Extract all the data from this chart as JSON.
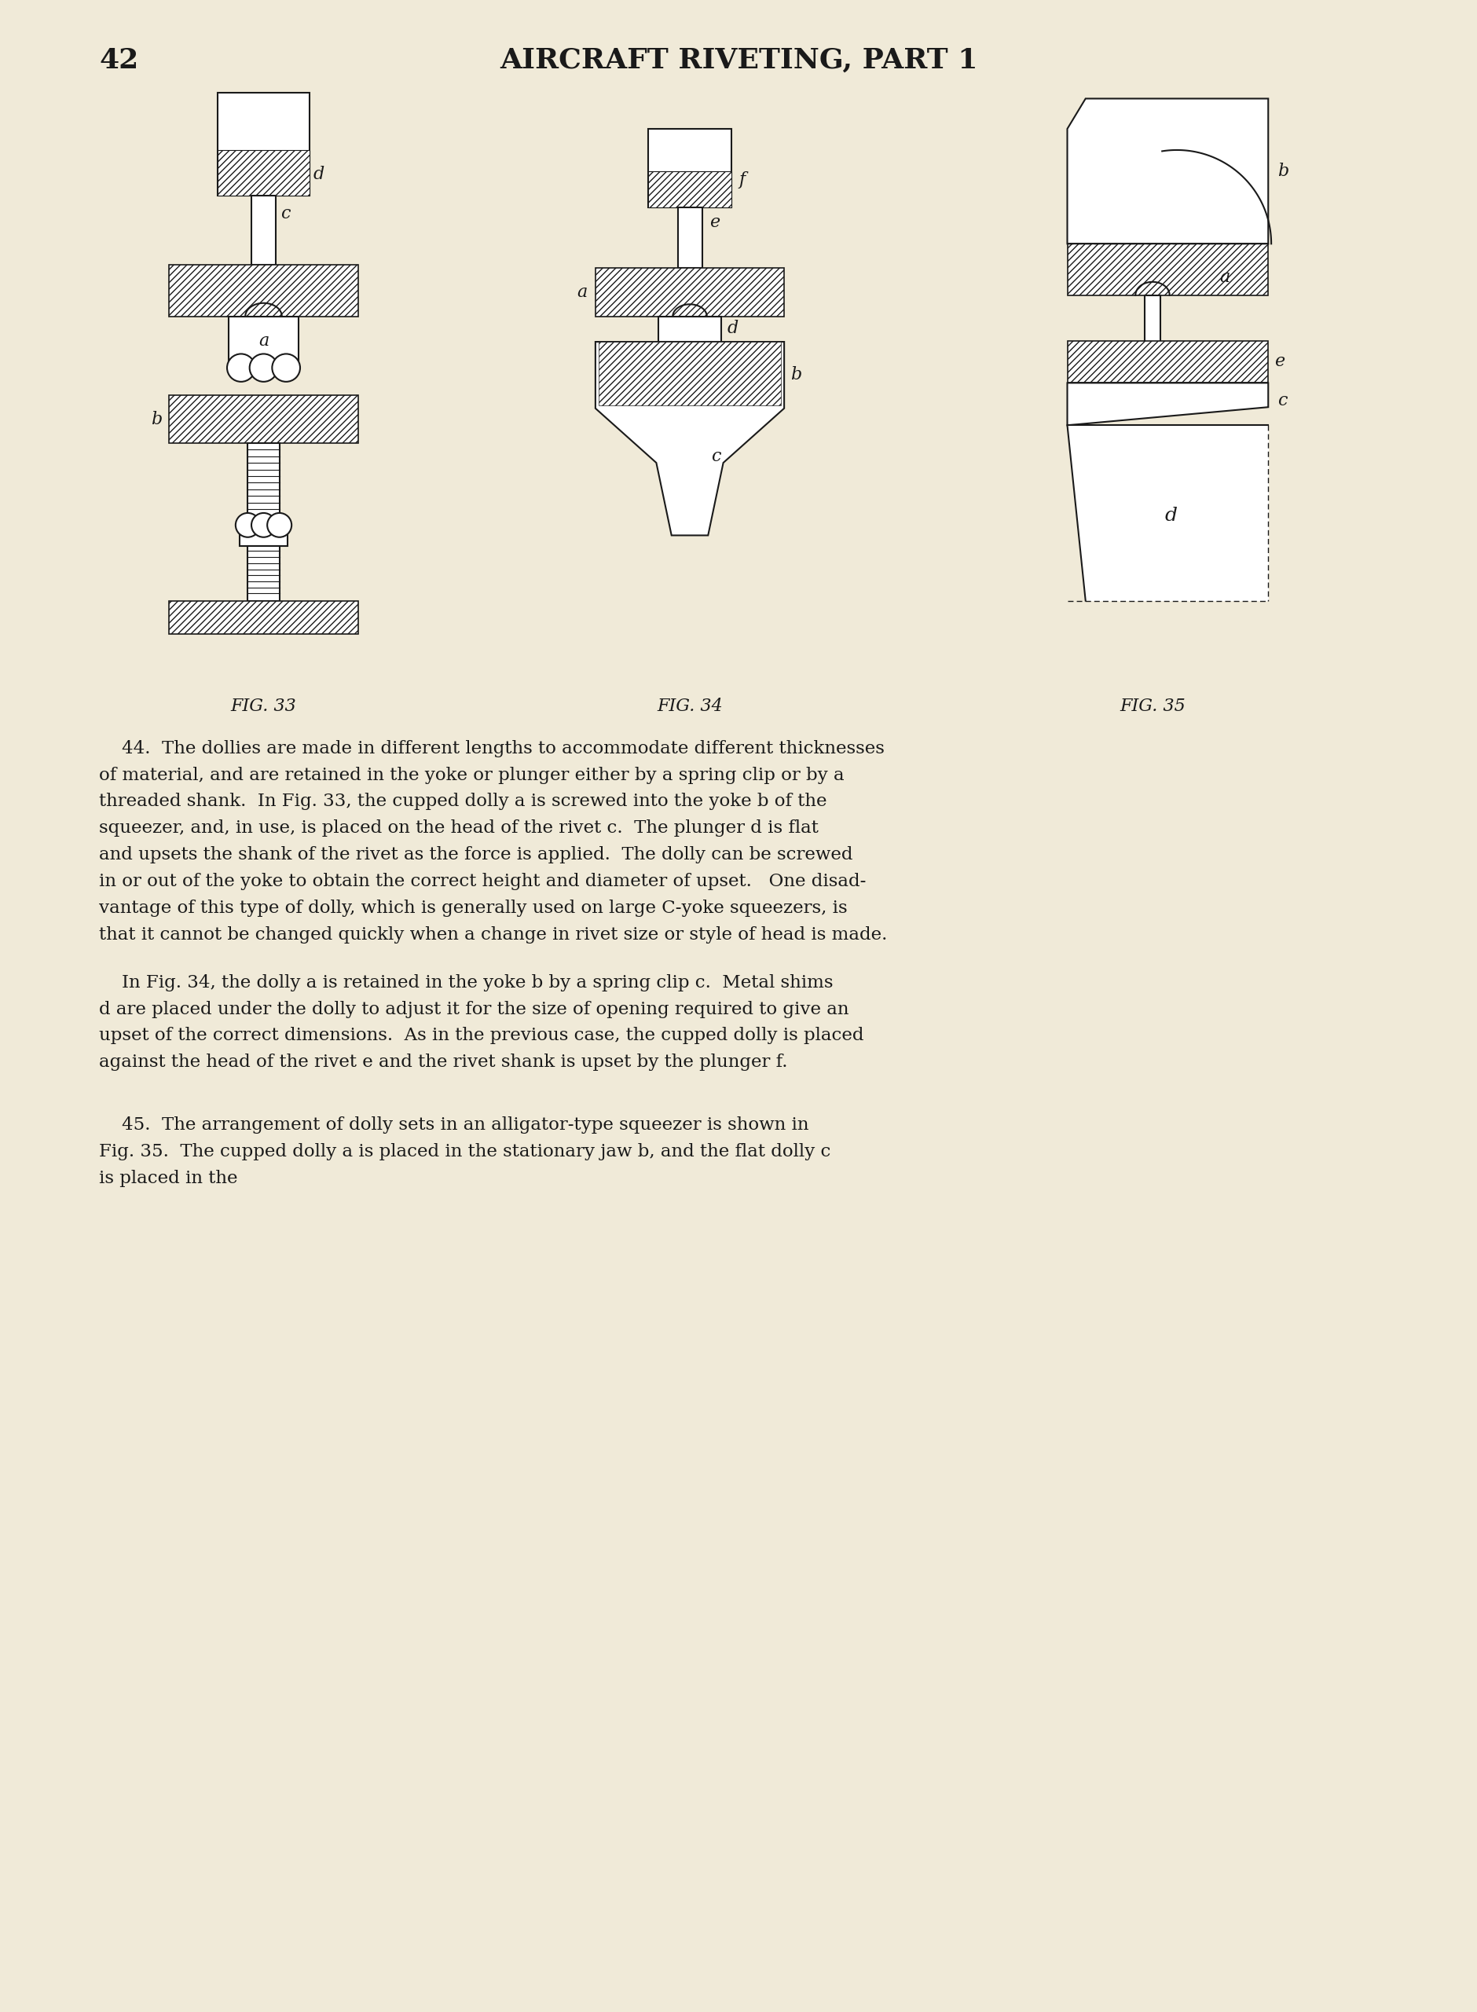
{
  "page_number": "42",
  "header_title": "AIRCRAFT RIVETING, PART 1",
  "background_color": "#f0ead8",
  "text_color": "#1a1a1a",
  "fig_captions": [
    "FIG. 33",
    "FIG. 34",
    "FIG. 35"
  ],
  "para44_lines": [
    "    44.  The dollies are made in different lengths to accommodate different thicknesses",
    "of material, and are retained in the yoke or plunger either by a spring clip or by a",
    "threaded shank.  In Fig. 33, the cupped dolly a is screwed into the yoke b of the",
    "squeezer, and, in use, is placed on the head of the rivet c.  The plunger d is flat",
    "and upsets the shank of the rivet as the force is applied.  The dolly can be screwed",
    "in or out of the yoke to obtain the correct height and diameter of upset.   One disad-",
    "vantage of this type of dolly, which is generally used on large C-yoke squeezers, is",
    "that it cannot be changed quickly when a change in rivet size or style of head is made."
  ],
  "para44b_lines": [
    "    In Fig. 34, the dolly a is retained in the yoke b by a spring clip c.  Metal shims",
    "d are placed under the dolly to adjust it for the size of opening required to give an",
    "upset of the correct dimensions.  As in the previous case, the cupped dolly is placed",
    "against the head of the rivet e and the rivet shank is upset by the plunger f."
  ],
  "para45_lines": [
    "    45.  The arrangement of dolly sets in an alligator-type squeezer is shown in",
    "Fig. 35.  The cupped dolly a is placed in the stationary jaw b, and the flat dolly c",
    "is placed in the"
  ]
}
